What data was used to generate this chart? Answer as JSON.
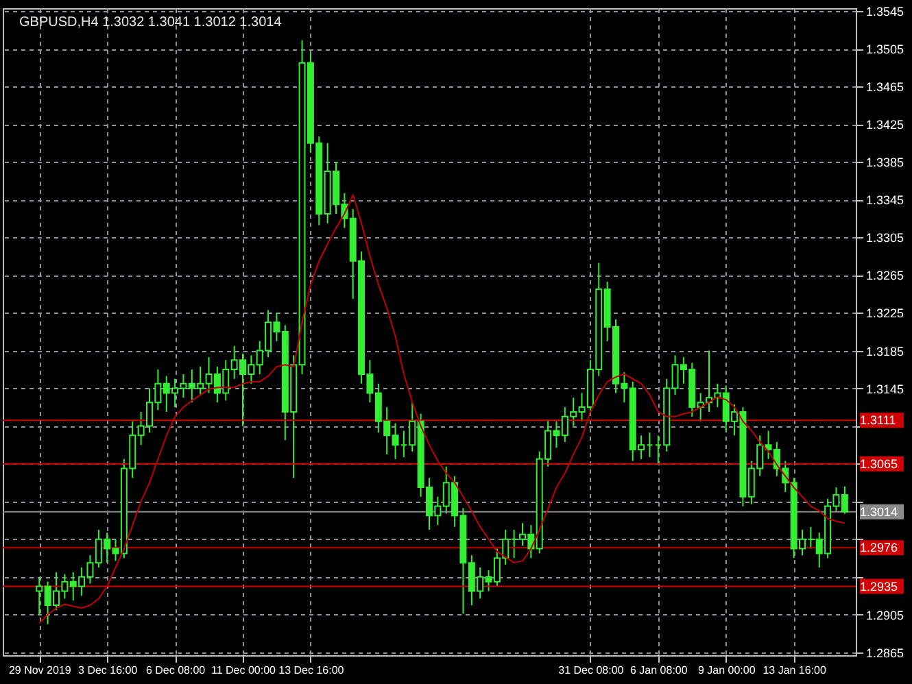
{
  "chart_data": {
    "type": "candlestick",
    "title": "GBPUSD,H4  1.3032 1.3041 1.3012 1.3014",
    "color": "#33ee33",
    "grid": true,
    "categories": [
      "29 Nov 2019",
      null,
      null,
      null,
      null,
      null,
      null,
      null,
      "3 Dec 16:00",
      null,
      null,
      null,
      null,
      null,
      null,
      null,
      "6 Dec 08:00",
      null,
      null,
      null,
      null,
      null,
      null,
      null,
      "11 Dec 00:00",
      null,
      null,
      null,
      null,
      null,
      null,
      null,
      "13 Dec 16:00",
      null,
      null,
      null,
      null,
      null,
      null,
      null,
      null,
      null,
      null,
      null,
      null,
      null,
      null,
      null,
      null,
      null,
      null,
      null,
      null,
      null,
      null,
      null,
      null,
      null,
      null,
      null,
      null,
      null,
      null,
      null,
      null,
      "31 Dec 08:00",
      null,
      null,
      null,
      null,
      null,
      null,
      null,
      "6 Jan 08:00",
      null,
      null,
      null,
      null,
      null,
      null,
      null,
      "9 Jan 00:00",
      null,
      null,
      null,
      null,
      null,
      null,
      null,
      "13 Jan 16:00",
      null,
      null,
      null,
      null,
      null,
      null
    ],
    "ohlc": [
      [
        1.293,
        1.2945,
        1.2905,
        1.2935
      ],
      [
        1.2935,
        1.294,
        1.2895,
        1.2915
      ],
      [
        1.2915,
        1.295,
        1.291,
        1.293
      ],
      [
        1.293,
        1.2948,
        1.2922,
        1.294
      ],
      [
        1.294,
        1.295,
        1.292,
        1.2935
      ],
      [
        1.2935,
        1.2955,
        1.2925,
        1.2945
      ],
      [
        1.2945,
        1.2968,
        1.2938,
        1.296
      ],
      [
        1.296,
        1.2995,
        1.2955,
        1.2985
      ],
      [
        1.2985,
        1.2992,
        1.296,
        1.2975
      ],
      [
        1.2975,
        1.2985,
        1.2962,
        1.297
      ],
      [
        1.297,
        1.307,
        1.2965,
        1.306
      ],
      [
        1.306,
        1.311,
        1.305,
        1.3095
      ],
      [
        1.3095,
        1.312,
        1.3085,
        1.3105
      ],
      [
        1.3105,
        1.3145,
        1.3098,
        1.313
      ],
      [
        1.313,
        1.3165,
        1.3122,
        1.315
      ],
      [
        1.315,
        1.3158,
        1.312,
        1.314
      ],
      [
        1.314,
        1.3155,
        1.3125,
        1.3145
      ],
      [
        1.3145,
        1.316,
        1.3135,
        1.315
      ],
      [
        1.315,
        1.3165,
        1.313,
        1.3145
      ],
      [
        1.3145,
        1.3168,
        1.3138,
        1.315
      ],
      [
        1.315,
        1.3178,
        1.314,
        1.316
      ],
      [
        1.316,
        1.3168,
        1.313,
        1.314
      ],
      [
        1.314,
        1.3175,
        1.3132,
        1.3165
      ],
      [
        1.3165,
        1.319,
        1.3155,
        1.3175
      ],
      [
        1.3175,
        1.3182,
        1.3105,
        1.316
      ],
      [
        1.316,
        1.318,
        1.315,
        1.317
      ],
      [
        1.317,
        1.3195,
        1.316,
        1.3185
      ],
      [
        1.3185,
        1.3228,
        1.3178,
        1.3215
      ],
      [
        1.3215,
        1.3225,
        1.3195,
        1.3205
      ],
      [
        1.3205,
        1.3212,
        1.309,
        1.312
      ],
      [
        1.312,
        1.318,
        1.305,
        1.317
      ],
      [
        1.317,
        1.3514,
        1.316,
        1.349
      ],
      [
        1.349,
        1.35,
        1.3395,
        1.3405
      ],
      [
        1.3405,
        1.3412,
        1.3318,
        1.333
      ],
      [
        1.333,
        1.3405,
        1.332,
        1.3375
      ],
      [
        1.3375,
        1.3385,
        1.333,
        1.334
      ],
      [
        1.334,
        1.3352,
        1.3315,
        1.3325
      ],
      [
        1.3325,
        1.3335,
        1.324,
        1.328
      ],
      [
        1.328,
        1.329,
        1.315,
        1.316
      ],
      [
        1.316,
        1.3175,
        1.313,
        1.314
      ],
      [
        1.314,
        1.315,
        1.3098,
        1.311
      ],
      [
        1.311,
        1.3125,
        1.3075,
        1.3095
      ],
      [
        1.3095,
        1.3108,
        1.307,
        1.3085
      ],
      [
        1.3085,
        1.31,
        1.3072,
        1.3085
      ],
      [
        1.3085,
        1.313,
        1.3078,
        1.311
      ],
      [
        1.311,
        1.3118,
        1.303,
        1.304
      ],
      [
        1.304,
        1.305,
        1.2995,
        1.301
      ],
      [
        1.301,
        1.303,
        1.3,
        1.302
      ],
      [
        1.302,
        1.3062,
        1.3012,
        1.3045
      ],
      [
        1.3045,
        1.3052,
        1.2998,
        1.301
      ],
      [
        1.301,
        1.3018,
        1.2906,
        1.296
      ],
      [
        1.296,
        1.2968,
        1.2915,
        1.293
      ],
      [
        1.293,
        1.2955,
        1.2922,
        1.2945
      ],
      [
        1.2945,
        1.2952,
        1.293,
        1.294
      ],
      [
        1.294,
        1.2975,
        1.2935,
        1.2965
      ],
      [
        1.2965,
        1.2995,
        1.2958,
        1.2985
      ],
      [
        1.2985,
        1.2995,
        1.2965,
        1.2985
      ],
      [
        1.2985,
        1.3002,
        1.2978,
        1.299
      ],
      [
        1.299,
        1.3,
        1.2965,
        1.2975
      ],
      [
        1.2975,
        1.3078,
        1.297,
        1.307
      ],
      [
        1.307,
        1.3112,
        1.3062,
        1.31
      ],
      [
        1.31,
        1.311,
        1.3082,
        1.3095
      ],
      [
        1.3095,
        1.3125,
        1.3088,
        1.3115
      ],
      [
        1.3115,
        1.3135,
        1.3105,
        1.312
      ],
      [
        1.312,
        1.314,
        1.311,
        1.3125
      ],
      [
        1.3125,
        1.3175,
        1.3118,
        1.3165
      ],
      [
        1.3165,
        1.3278,
        1.3158,
        1.325
      ],
      [
        1.325,
        1.3258,
        1.3195,
        1.321
      ],
      [
        1.321,
        1.3218,
        1.314,
        1.315
      ],
      [
        1.315,
        1.3162,
        1.313,
        1.3145
      ],
      [
        1.3145,
        1.3152,
        1.3068,
        1.308
      ],
      [
        1.308,
        1.3095,
        1.307,
        1.3085
      ],
      [
        1.3085,
        1.3098,
        1.3072,
        1.3085
      ],
      [
        1.3085,
        1.3095,
        1.3065,
        1.3085
      ],
      [
        1.3085,
        1.3155,
        1.3078,
        1.3145
      ],
      [
        1.3145,
        1.318,
        1.3138,
        1.317
      ],
      [
        1.317,
        1.3178,
        1.315,
        1.3165
      ],
      [
        1.3165,
        1.3172,
        1.3115,
        1.3125
      ],
      [
        1.3125,
        1.314,
        1.311,
        1.313
      ],
      [
        1.313,
        1.3185,
        1.312,
        1.3135
      ],
      [
        1.3135,
        1.315,
        1.3125,
        1.314
      ],
      [
        1.314,
        1.3148,
        1.31,
        1.311
      ],
      [
        1.311,
        1.3128,
        1.3095,
        1.312
      ],
      [
        1.312,
        1.3125,
        1.302,
        1.303
      ],
      [
        1.303,
        1.3068,
        1.3022,
        1.306
      ],
      [
        1.306,
        1.3095,
        1.3052,
        1.3085
      ],
      [
        1.3085,
        1.31,
        1.307,
        1.308
      ],
      [
        1.308,
        1.3088,
        1.3052,
        1.306
      ],
      [
        1.306,
        1.3068,
        1.3035,
        1.3045
      ],
      [
        1.3045,
        1.305,
        1.2965,
        1.2975
      ],
      [
        1.2975,
        1.2995,
        1.2968,
        1.2985
      ],
      [
        1.2985,
        1.2998,
        1.2975,
        1.2985
      ],
      [
        1.2985,
        1.2992,
        1.2955,
        1.297
      ],
      [
        1.297,
        1.3028,
        1.2965,
        1.302
      ],
      [
        1.302,
        1.304,
        1.3015,
        1.3032
      ],
      [
        1.3032,
        1.3041,
        1.3012,
        1.3014
      ]
    ],
    "series": [
      {
        "type": "line",
        "color": "#c00000",
        "values": [
          1.2896,
          1.2905,
          1.2912,
          1.2916,
          1.2914,
          1.2912,
          1.2915,
          1.2922,
          1.2935,
          1.2955,
          1.2975,
          1.3,
          1.3025,
          1.3045,
          1.307,
          1.3095,
          1.3115,
          1.3125,
          1.3132,
          1.3138,
          1.3144,
          1.3146,
          1.3146,
          1.3146,
          1.315,
          1.3152,
          1.3152,
          1.3158,
          1.3168,
          1.317,
          1.3168,
          1.3215,
          1.3255,
          1.328,
          1.3298,
          1.3315,
          1.333,
          1.335,
          1.332,
          1.3285,
          1.3255,
          1.323,
          1.32,
          1.316,
          1.313,
          1.3105,
          1.3085,
          1.3068,
          1.3055,
          1.3045,
          1.303,
          1.3015,
          1.2998,
          1.2985,
          1.2972,
          1.2966,
          1.296,
          1.2962,
          1.2975,
          1.2995,
          1.3017,
          1.304,
          1.3055,
          1.3075,
          1.3093,
          1.312,
          1.3138,
          1.3152,
          1.3157,
          1.316,
          1.3155,
          1.315,
          1.3138,
          1.312,
          1.3115,
          1.3115,
          1.3118,
          1.312,
          1.3125,
          1.313,
          1.3136,
          1.3133,
          1.3125,
          1.311,
          1.31,
          1.3088,
          1.3078,
          1.3064,
          1.3052,
          1.304,
          1.303,
          1.302,
          1.3015,
          1.3007,
          1.3004,
          1.3002
        ]
      }
    ],
    "ylim": [
      1.2862,
      1.3548
    ],
    "yticks": [
      1.2865,
      1.2905,
      {
        "value": 1.2945,
        "label": null
      },
      {
        "value": 1.2985,
        "label": null
      },
      {
        "value": 1.3025,
        "label": null
      },
      {
        "value": 1.3065,
        "label": null
      },
      {
        "value": 1.3105,
        "label": null
      },
      1.3145,
      1.3185,
      1.3225,
      1.3265,
      1.3305,
      1.3345,
      1.3385,
      1.3425,
      1.3465,
      1.3505,
      1.3545
    ],
    "ref_lines": [
      {
        "axis": "y",
        "value": 1.3111,
        "label": "1.3111",
        "color": "#d00000"
      },
      {
        "axis": "y",
        "value": 1.3065,
        "label": "1.3065",
        "color": "#d00000"
      },
      {
        "axis": "y",
        "value": 1.2976,
        "label": "1.2976",
        "color": "#d00000"
      },
      {
        "axis": "y",
        "value": 1.2935,
        "label": "1.2935",
        "color": "#d00000"
      },
      {
        "axis": "y",
        "value": 1.3014,
        "label": "1.3014",
        "color": "#8a8a8a"
      }
    ]
  }
}
